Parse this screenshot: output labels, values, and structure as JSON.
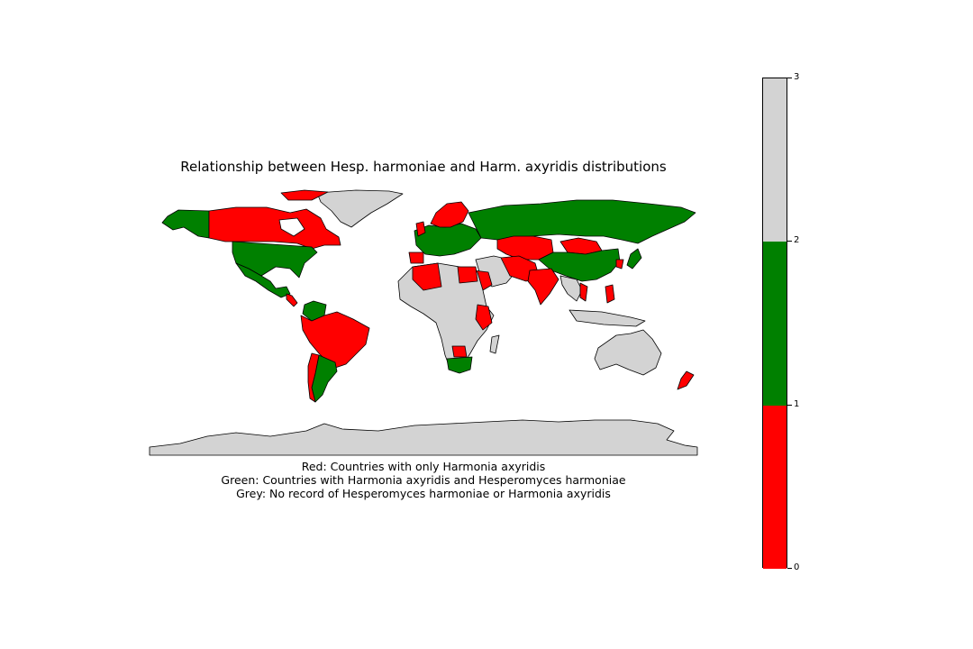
{
  "title": "Relationship between Hesp. harmoniae and Harm. axyridis distributions",
  "caption": {
    "red": "Red: Countries with only Harmonia axyridis",
    "green": "Green: Countries with Harmonia axyridis and Hesperomyces harmoniae",
    "grey": "Grey: No record of Hesperomyces harmoniae or Harmonia axyridis"
  },
  "colors": {
    "red": "#ff0000",
    "green": "#008000",
    "grey": "#d3d3d3",
    "border": "#000000"
  },
  "colorbar": {
    "ticks": [
      "0",
      "1",
      "2",
      "3"
    ],
    "bands": [
      {
        "from": 0,
        "to": 1,
        "color": "#ff0000"
      },
      {
        "from": 1,
        "to": 2,
        "color": "#008000"
      },
      {
        "from": 2,
        "to": 3,
        "color": "#d3d3d3"
      }
    ]
  }
}
